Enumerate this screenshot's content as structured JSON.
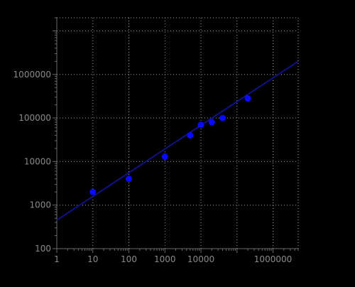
{
  "chart_data": {
    "type": "scatter",
    "title": "",
    "xlabel": "",
    "ylabel": "",
    "xscale": "log",
    "yscale": "log",
    "xlim": [
      1,
      5000000
    ],
    "ylim": [
      100,
      20000000
    ],
    "x_ticks": [
      {
        "value": 1,
        "label": "1"
      },
      {
        "value": 10,
        "label": "10"
      },
      {
        "value": 100,
        "label": "100"
      },
      {
        "value": 1000,
        "label": "1000"
      },
      {
        "value": 10000,
        "label": "10000"
      },
      {
        "value": 1000000,
        "label": "1000000"
      }
    ],
    "x_grid": [
      10,
      100,
      1000,
      10000,
      100000,
      1000000
    ],
    "y_ticks": [
      {
        "value": 100,
        "label": "100"
      },
      {
        "value": 1000,
        "label": "1000"
      },
      {
        "value": 10000,
        "label": "10000"
      },
      {
        "value": 100000,
        "label": "100000"
      },
      {
        "value": 1000000,
        "label": "1000000"
      }
    ],
    "y_grid": [
      1000,
      10000,
      100000,
      1000000,
      10000000
    ],
    "grid": true,
    "grid_style": "dotted",
    "legend": "none",
    "series": [
      {
        "kind": "points",
        "color": "#0a0aff",
        "points": [
          {
            "x": 10,
            "y": 2000
          },
          {
            "x": 100,
            "y": 4000
          },
          {
            "x": 1000,
            "y": 13000
          },
          {
            "x": 5000,
            "y": 40000
          },
          {
            "x": 10000,
            "y": 70000
          },
          {
            "x": 20000,
            "y": 80000
          },
          {
            "x": 40000,
            "y": 100000
          },
          {
            "x": 200000,
            "y": 280000
          }
        ]
      },
      {
        "kind": "fit-line",
        "color": "#101088",
        "points": [
          {
            "x": 1,
            "y": 450
          },
          {
            "x": 5000000,
            "y": 2000000
          }
        ]
      }
    ],
    "colors": {
      "background": "#000000",
      "axis": "#6a6a6a",
      "grid": "#9a9a9a",
      "tick_label": "#8a8a8a"
    }
  }
}
